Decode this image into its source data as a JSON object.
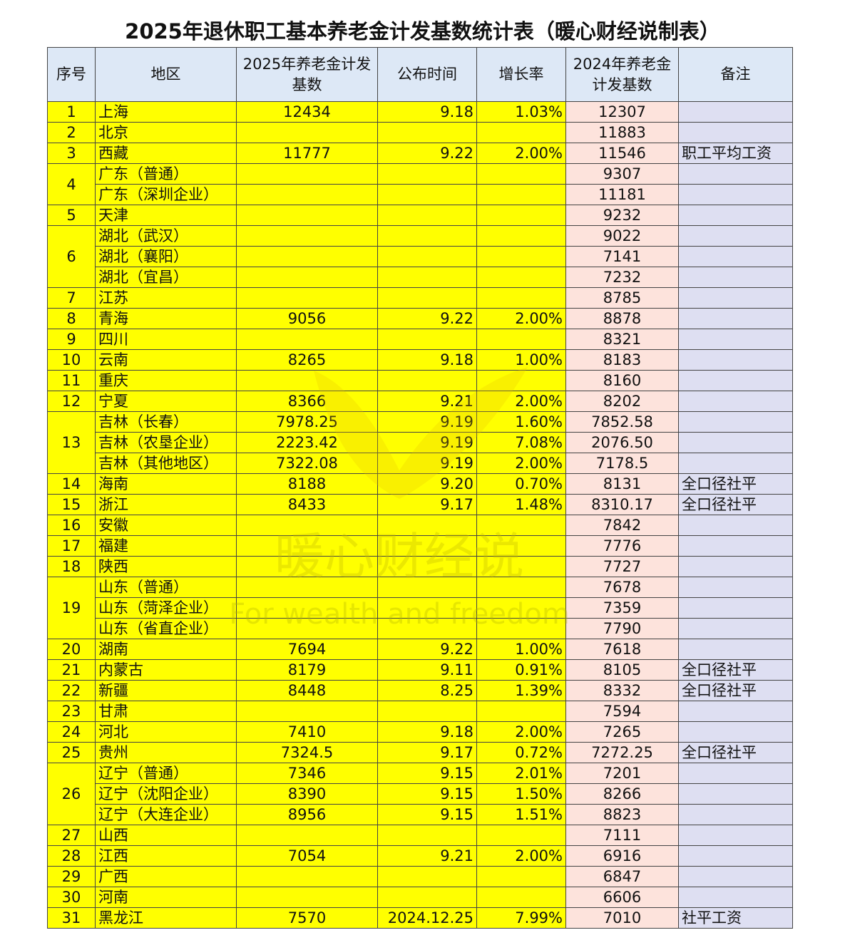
{
  "title": "2025年退休职工基本养老金计发基数统计表（暖心财经说制表）",
  "watermark": {
    "text": "暖心财经说",
    "subtitle": "For wealth and freedom"
  },
  "table": {
    "header": [
      "序号",
      "地区",
      "2025年养老金计发基数",
      "公布时间",
      "增长率",
      "2024年养老金计发基数",
      "备注"
    ],
    "groups": [
      {
        "no": "1",
        "rows": [
          [
            "上海",
            "12434",
            "9.18",
            "1.03%",
            "12307",
            null
          ]
        ]
      },
      {
        "no": "2",
        "rows": [
          [
            "北京",
            null,
            null,
            null,
            "11883",
            null
          ]
        ]
      },
      {
        "no": "3",
        "rows": [
          [
            "西藏",
            "11777",
            "9.22",
            "2.00%",
            "11546",
            "职工平均工资"
          ]
        ]
      },
      {
        "no": "4",
        "rows": [
          [
            "广东（普通）",
            null,
            null,
            null,
            "9307",
            null
          ],
          [
            "广东（深圳企业）",
            null,
            null,
            null,
            "11181",
            null
          ]
        ]
      },
      {
        "no": "5",
        "rows": [
          [
            "天津",
            null,
            null,
            null,
            "9232",
            null
          ]
        ]
      },
      {
        "no": "6",
        "rows": [
          [
            "湖北（武汉）",
            null,
            null,
            null,
            "9022",
            null
          ],
          [
            "湖北（襄阳）",
            null,
            null,
            null,
            "7141",
            null
          ],
          [
            "湖北（宜昌）",
            null,
            null,
            null,
            "7232",
            null
          ]
        ]
      },
      {
        "no": "7",
        "rows": [
          [
            "江苏",
            null,
            null,
            null,
            "8785",
            null
          ]
        ]
      },
      {
        "no": "8",
        "rows": [
          [
            "青海",
            "9056",
            "9.22",
            "2.00%",
            "8878",
            null
          ]
        ]
      },
      {
        "no": "9",
        "rows": [
          [
            "四川",
            null,
            null,
            null,
            "8321",
            null
          ]
        ]
      },
      {
        "no": "10",
        "rows": [
          [
            "云南",
            "8265",
            "9.18",
            "1.00%",
            "8183",
            null
          ]
        ]
      },
      {
        "no": "11",
        "rows": [
          [
            "重庆",
            null,
            null,
            null,
            "8160",
            null
          ]
        ]
      },
      {
        "no": "12",
        "rows": [
          [
            "宁夏",
            "8366",
            "9.21",
            "2.00%",
            "8202",
            null
          ]
        ]
      },
      {
        "no": "13",
        "rows": [
          [
            "吉林（长春）",
            "7978.25",
            "9.19",
            "1.60%",
            "7852.58",
            null
          ],
          [
            "吉林（农垦企业）",
            "2223.42",
            "9.19",
            "7.08%",
            "2076.50",
            null
          ],
          [
            "吉林（其他地区）",
            "7322.08",
            "9.19",
            "2.00%",
            "7178.5",
            null
          ]
        ]
      },
      {
        "no": "14",
        "rows": [
          [
            "海南",
            "8188",
            "9.20",
            "0.70%",
            "8131",
            "全口径社平"
          ]
        ]
      },
      {
        "no": "15",
        "rows": [
          [
            "浙江",
            "8433",
            "9.17",
            "1.48%",
            "8310.17",
            "全口径社平"
          ]
        ]
      },
      {
        "no": "16",
        "rows": [
          [
            "安徽",
            null,
            null,
            null,
            "7842",
            null
          ]
        ]
      },
      {
        "no": "17",
        "rows": [
          [
            "福建",
            null,
            null,
            null,
            "7776",
            null
          ]
        ]
      },
      {
        "no": "18",
        "rows": [
          [
            "陕西",
            null,
            null,
            null,
            "7727",
            null
          ]
        ]
      },
      {
        "no": "19",
        "rows": [
          [
            "山东（普通）",
            null,
            null,
            null,
            "7678",
            null
          ],
          [
            "山东（菏泽企业）",
            null,
            null,
            null,
            "7359",
            null
          ],
          [
            "山东（省直企业）",
            null,
            null,
            null,
            "7790",
            null
          ]
        ]
      },
      {
        "no": "20",
        "rows": [
          [
            "湖南",
            "7694",
            "9.22",
            "1.00%",
            "7618",
            null
          ]
        ]
      },
      {
        "no": "21",
        "rows": [
          [
            "内蒙古",
            "8179",
            "9.11",
            "0.91%",
            "8105",
            "全口径社平"
          ]
        ]
      },
      {
        "no": "22",
        "rows": [
          [
            "新疆",
            "8448",
            "8.25",
            "1.39%",
            "8332",
            "全口径社平"
          ]
        ]
      },
      {
        "no": "23",
        "rows": [
          [
            "甘肃",
            null,
            null,
            null,
            "7594",
            null
          ]
        ]
      },
      {
        "no": "24",
        "rows": [
          [
            "河北",
            "7410",
            "9.18",
            "2.00%",
            "7265",
            null
          ]
        ]
      },
      {
        "no": "25",
        "rows": [
          [
            "贵州",
            "7324.5",
            "9.17",
            "0.72%",
            "7272.25",
            "全口径社平"
          ]
        ]
      },
      {
        "no": "26",
        "rows": [
          [
            "辽宁（普通）",
            "7346",
            "9.15",
            "2.01%",
            "7201",
            null
          ],
          [
            "辽宁（沈阳企业）",
            "8390",
            "9.15",
            "1.50%",
            "8266",
            null
          ],
          [
            "辽宁（大连企业）",
            "8956",
            "9.15",
            "1.51%",
            "8823",
            null
          ]
        ]
      },
      {
        "no": "27",
        "rows": [
          [
            "山西",
            null,
            null,
            null,
            "7111",
            null
          ]
        ]
      },
      {
        "no": "28",
        "rows": [
          [
            "江西",
            "7054",
            "9.21",
            "2.00%",
            "6916",
            null
          ]
        ]
      },
      {
        "no": "29",
        "rows": [
          [
            "广西",
            null,
            null,
            null,
            "6847",
            null
          ]
        ]
      },
      {
        "no": "30",
        "rows": [
          [
            "河南",
            null,
            null,
            null,
            "6606",
            null
          ]
        ]
      },
      {
        "no": "31",
        "rows": [
          [
            "黑龙江",
            "7570",
            "2024.12.25",
            "7.99%",
            "7010",
            "社平工资"
          ]
        ]
      }
    ]
  }
}
